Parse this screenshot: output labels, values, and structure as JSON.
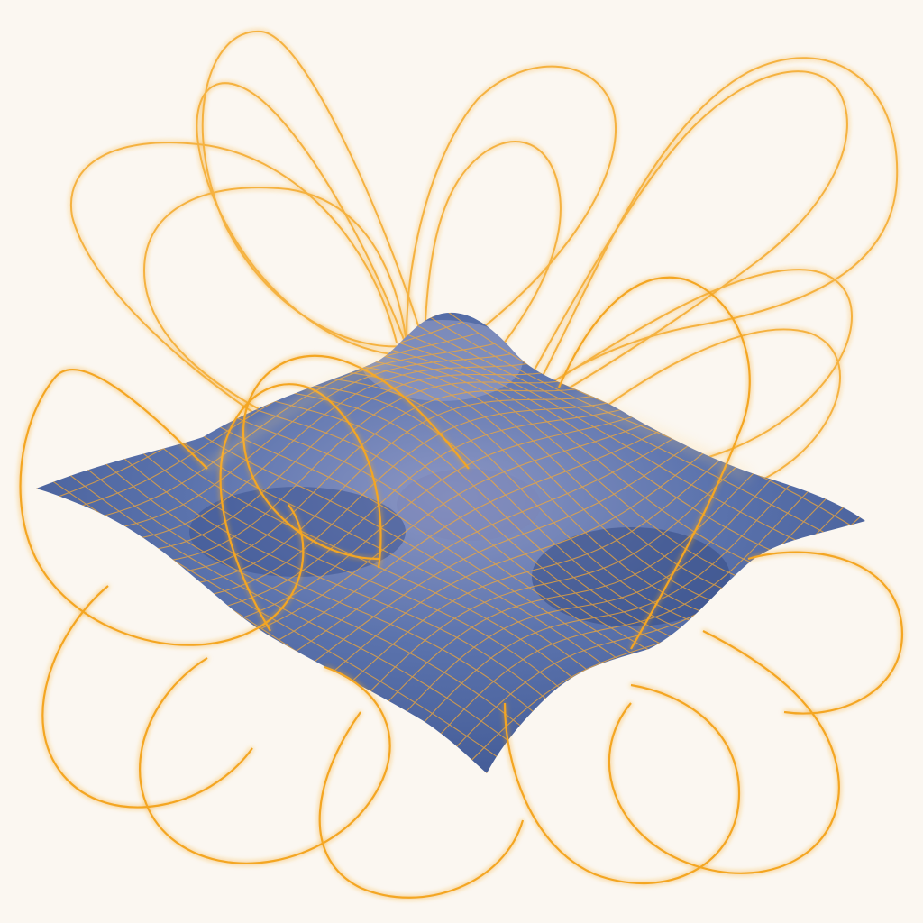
{
  "colors": {
    "background": "#fbf7f1",
    "surface": "#4a6aa4",
    "surface_shadow": "#3b5690",
    "surface_highlight": "#7d8fc2",
    "mesh_lines": "#f3a936",
    "field_lines": "#f4a623",
    "glow": "#ffd27a"
  },
  "scene": {
    "subject": "glowing-field-loops-around-wavy-surface",
    "surface_style": "blue-mesh",
    "loop_style": "thin-orange-glowing-curves"
  }
}
